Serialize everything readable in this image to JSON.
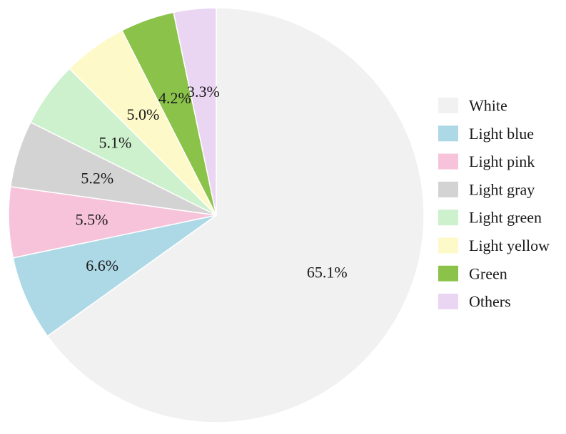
{
  "chart_data": {
    "type": "pie",
    "start_angle": "12 o'clock",
    "direction": "clockwise",
    "legend_position": "right",
    "slices": [
      {
        "label": "White",
        "value": 65.1,
        "value_label": "65.1%",
        "color": "#f1f1f1"
      },
      {
        "label": "Light blue",
        "value": 6.6,
        "value_label": "6.6%",
        "color": "#add8e6"
      },
      {
        "label": "Light pink",
        "value": 5.5,
        "value_label": "5.5%",
        "color": "#f6c3da"
      },
      {
        "label": "Light gray",
        "value": 5.2,
        "value_label": "5.2%",
        "color": "#d3d3d3"
      },
      {
        "label": "Light green",
        "value": 5.1,
        "value_label": "5.1%",
        "color": "#cdf0cd"
      },
      {
        "label": "Light yellow",
        "value": 5.0,
        "value_label": "5.0%",
        "color": "#fef9c8"
      },
      {
        "label": "Green",
        "value": 4.2,
        "value_label": "4.2%",
        "color": "#8bc34a"
      },
      {
        "label": "Others",
        "value": 3.3,
        "value_label": "3.3%",
        "color": "#ead5f2"
      }
    ]
  }
}
